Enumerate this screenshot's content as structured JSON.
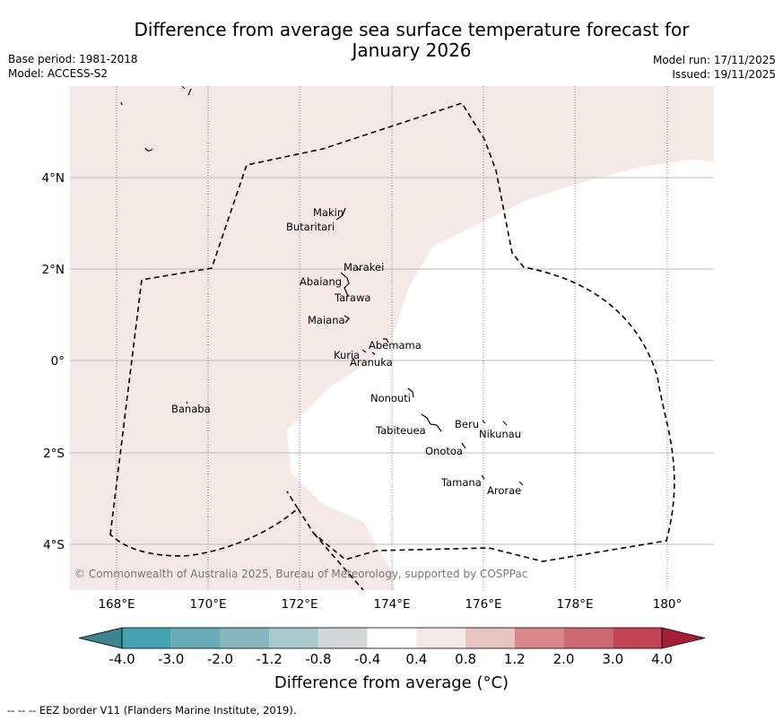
{
  "header": {
    "title_line1": "Difference from average sea surface temperature forecast for",
    "title_line2": "January 2026",
    "base_period": "Base period: 1981-2018",
    "model": "Model: ACCESS-S2",
    "model_run": "Model run: 17/11/2025",
    "issued": "Issued: 19/11/2025"
  },
  "map": {
    "lon_labels": [
      "168°E",
      "170°E",
      "172°E",
      "174°E",
      "176°E",
      "178°E",
      "180°"
    ],
    "lat_labels": [
      "4°N",
      "2°N",
      "0°",
      "2°S",
      "4°S"
    ],
    "islands": [
      "Makin",
      "Butaritari",
      "Marakei",
      "Abaiang",
      "Tarawa",
      "Maiana",
      "Abemama",
      "Kuria",
      "Aranuka",
      "Nonouti",
      "Banaba",
      "Tabiteuea",
      "Beru",
      "Nikunau",
      "Onotoa",
      "Tamana",
      "Arorae"
    ],
    "copyright": "© Commonwealth of Australia 2025, Bureau of Meteorology, supported by COSPPac",
    "colors": {
      "land_border": "#000000",
      "shaded_region": "#f5e9e8",
      "gridline": "#bbbbbb"
    }
  },
  "colorbar": {
    "ticks": [
      "-4.0",
      "-3.0",
      "-2.0",
      "-1.2",
      "-0.8",
      "-0.4",
      "0.4",
      "0.8",
      "1.2",
      "2.0",
      "3.0",
      "4.0"
    ],
    "colors": [
      "#3a8592",
      "#45a3b1",
      "#67acb8",
      "#89b7c0",
      "#a8c8cc",
      "#d4d7d8",
      "#ffffff",
      "#f5e9e8",
      "#e8c4c1",
      "#d8878d",
      "#cc6871",
      "#c24455",
      "#a81d36"
    ],
    "label": "Difference from average (°C)"
  },
  "footer": {
    "eez_note": "--  --  -- EEZ border V11 (Flanders Marine Institute, 2019)."
  }
}
